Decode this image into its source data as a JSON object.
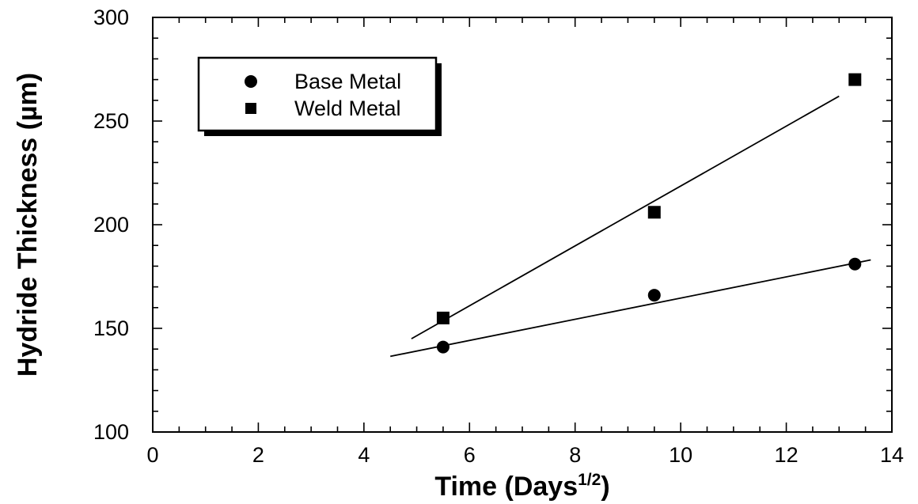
{
  "chart_data": {
    "type": "scatter",
    "xlabel": "Time  (Days",
    "xlabel_sup": "1/2",
    "xlabel_end": ")",
    "ylabel": "Hydride Thickness (µm)",
    "xlim": [
      0,
      14
    ],
    "ylim": [
      100,
      300
    ],
    "x_ticks": [
      0,
      2,
      4,
      6,
      8,
      10,
      12,
      14
    ],
    "y_ticks": [
      100,
      150,
      200,
      250,
      300
    ],
    "legend_position": "top-left",
    "series": [
      {
        "name": "Base Metal",
        "marker": "circle",
        "color": "#000000",
        "points": [
          {
            "x": 5.5,
            "y": 141
          },
          {
            "x": 9.5,
            "y": 166
          },
          {
            "x": 13.3,
            "y": 181
          }
        ],
        "fit_line": [
          [
            4.5,
            136.5
          ],
          [
            13.6,
            183
          ]
        ]
      },
      {
        "name": "Weld Metal",
        "marker": "square",
        "color": "#000000",
        "points": [
          {
            "x": 5.5,
            "y": 155
          },
          {
            "x": 9.5,
            "y": 206
          },
          {
            "x": 13.3,
            "y": 270
          }
        ],
        "fit_line": [
          [
            4.9,
            145
          ],
          [
            13.0,
            262
          ]
        ]
      }
    ]
  }
}
